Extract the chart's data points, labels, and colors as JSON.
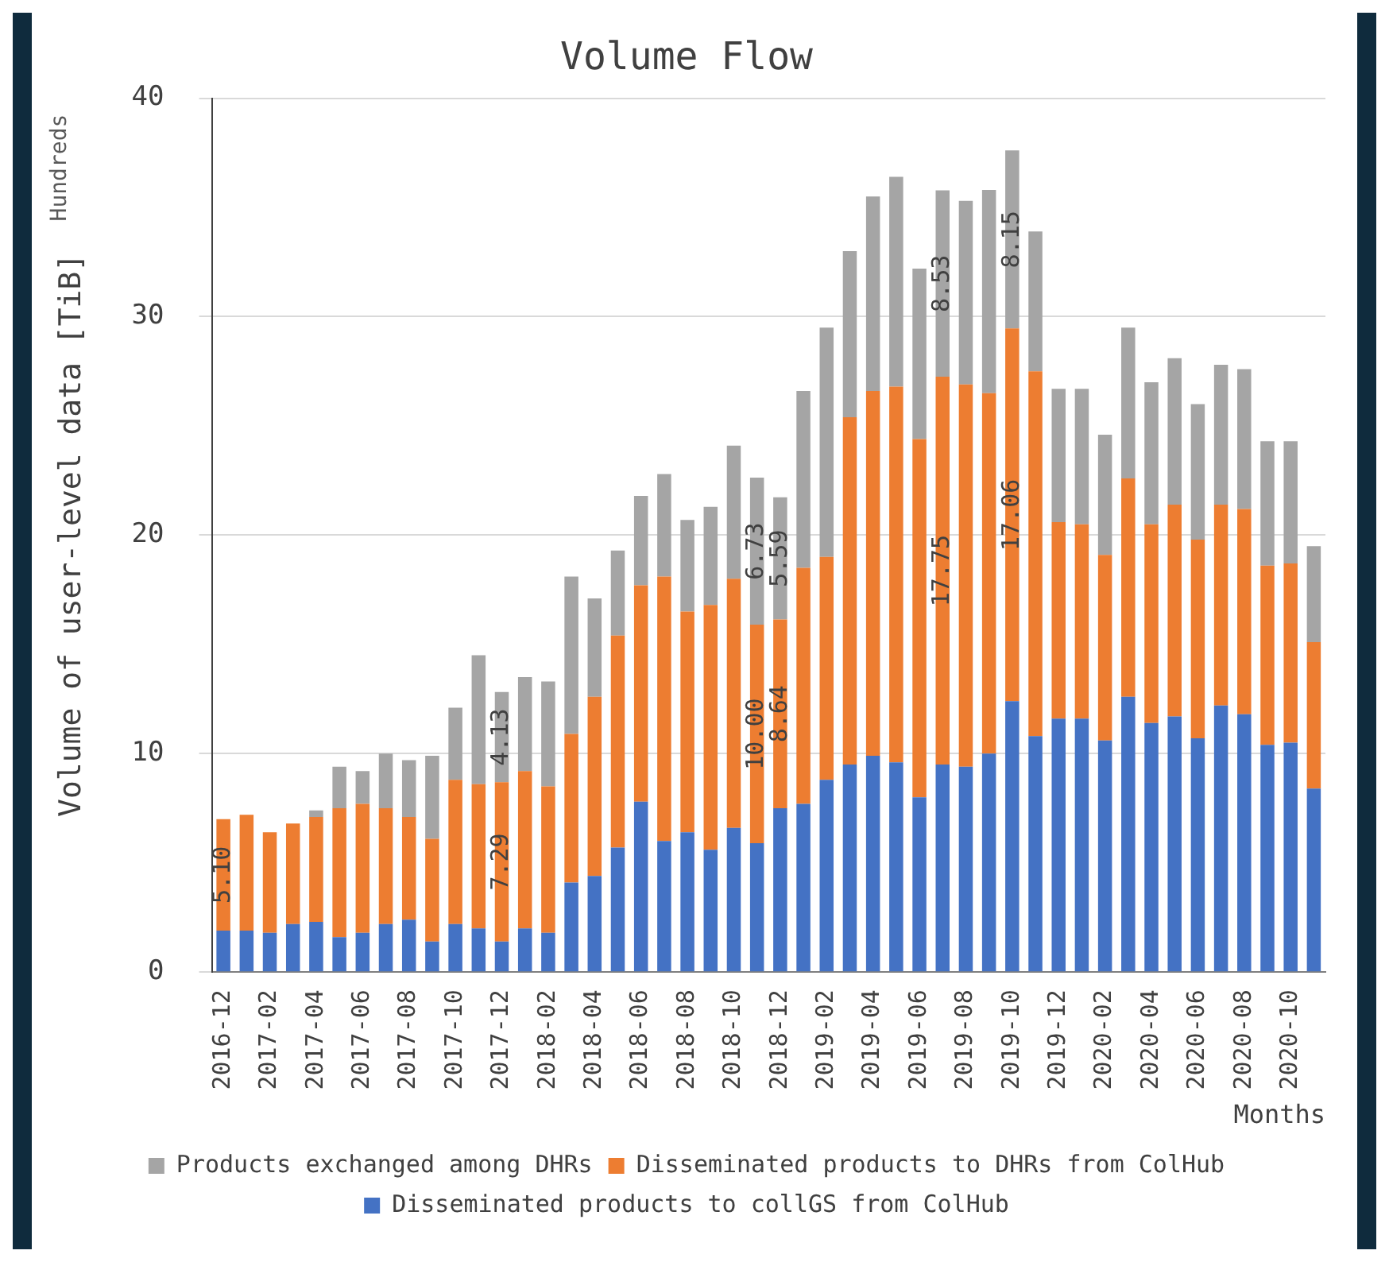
{
  "chart_data": {
    "type": "bar",
    "title": "Volume Flow",
    "xlabel": "Months",
    "ylabel": "Volume of user-level data [TiB]",
    "annotations": [
      "Hundreds"
    ],
    "categories": [
      "2016-12",
      null,
      "2017-02",
      null,
      "2017-04",
      null,
      "2017-06",
      null,
      "2017-08",
      null,
      "2017-10",
      null,
      "2017-12",
      null,
      "2018-02",
      null,
      "2018-04",
      null,
      "2018-06",
      null,
      "2018-08",
      null,
      "2018-10",
      null,
      "2018-12",
      null,
      "2019-02",
      null,
      "2019-04",
      null,
      "2019-06",
      null,
      "2019-08",
      null,
      "2019-10",
      null,
      "2019-12",
      null,
      "2020-02",
      null,
      "2020-04",
      null,
      "2020-06",
      null,
      "2020-08",
      null,
      "2020-10",
      null
    ],
    "stacked": true,
    "ylim": [
      0,
      40
    ],
    "yticks": [
      0,
      10,
      20,
      30,
      40
    ],
    "grid": "y",
    "legend": "bottom",
    "series": [
      {
        "name": "Disseminated products to collGS from ColHub",
        "color": "#4472c4",
        "values": [
          1.9,
          1.9,
          1.8,
          2.2,
          2.3,
          1.6,
          1.8,
          2.2,
          2.4,
          1.4,
          2.2,
          2.0,
          1.4,
          2.0,
          1.8,
          4.1,
          4.4,
          5.7,
          7.8,
          6.0,
          6.4,
          5.6,
          6.6,
          5.9,
          7.5,
          7.7,
          8.8,
          9.5,
          9.9,
          9.6,
          8.0,
          9.5,
          9.4,
          10.0,
          12.4,
          10.8,
          11.6,
          11.6,
          10.6,
          12.6,
          11.4,
          11.7,
          10.7,
          12.2,
          11.8,
          10.4,
          10.5,
          8.4
        ]
      },
      {
        "name": "Disseminated products to DHRs from ColHub",
        "color": "#ed7d31",
        "values": [
          5.1,
          5.3,
          4.6,
          4.6,
          4.8,
          5.9,
          5.9,
          5.3,
          4.7,
          4.7,
          6.6,
          6.6,
          7.29,
          7.2,
          6.7,
          6.8,
          8.2,
          9.7,
          9.9,
          12.1,
          10.1,
          11.2,
          11.4,
          10.0,
          8.64,
          10.8,
          10.2,
          15.9,
          16.7,
          17.2,
          16.4,
          17.75,
          17.5,
          16.5,
          17.06,
          16.7,
          9.0,
          8.9,
          8.5,
          10.0,
          9.1,
          9.7,
          9.1,
          9.2,
          9.4,
          8.2,
          8.2,
          6.7
        ],
        "value_labels": [
          "5.10",
          null,
          null,
          null,
          null,
          null,
          null,
          null,
          null,
          null,
          null,
          null,
          "7.29",
          null,
          null,
          null,
          null,
          null,
          null,
          null,
          null,
          null,
          null,
          "10.00",
          "8.64",
          null,
          null,
          null,
          null,
          null,
          null,
          "17.75",
          null,
          null,
          "17.06",
          null,
          null,
          null,
          null,
          null,
          null,
          null,
          null,
          null,
          null,
          null,
          null,
          null
        ]
      },
      {
        "name": "Products exchanged among DHRs",
        "color": "#a5a5a5",
        "values": [
          0,
          0,
          0,
          0,
          0.3,
          1.9,
          1.5,
          2.5,
          2.6,
          3.8,
          3.3,
          5.9,
          4.13,
          4.3,
          4.8,
          7.2,
          4.5,
          3.9,
          4.1,
          4.7,
          4.2,
          4.5,
          6.1,
          6.73,
          5.59,
          8.1,
          10.5,
          7.6,
          8.9,
          9.6,
          7.8,
          8.53,
          8.4,
          9.3,
          8.15,
          6.4,
          6.1,
          6.2,
          5.5,
          6.9,
          6.5,
          6.7,
          6.2,
          6.4,
          6.4,
          5.7,
          5.6,
          4.4
        ],
        "value_labels": [
          null,
          null,
          null,
          null,
          null,
          null,
          null,
          null,
          null,
          null,
          null,
          null,
          "4.13",
          null,
          null,
          null,
          null,
          null,
          null,
          null,
          null,
          null,
          null,
          "6.73",
          "5.59",
          null,
          null,
          null,
          null,
          null,
          null,
          "8.53",
          null,
          null,
          "8.15",
          null,
          null,
          null,
          null,
          null,
          null,
          null,
          null,
          null,
          null,
          null,
          null,
          null
        ]
      }
    ]
  }
}
